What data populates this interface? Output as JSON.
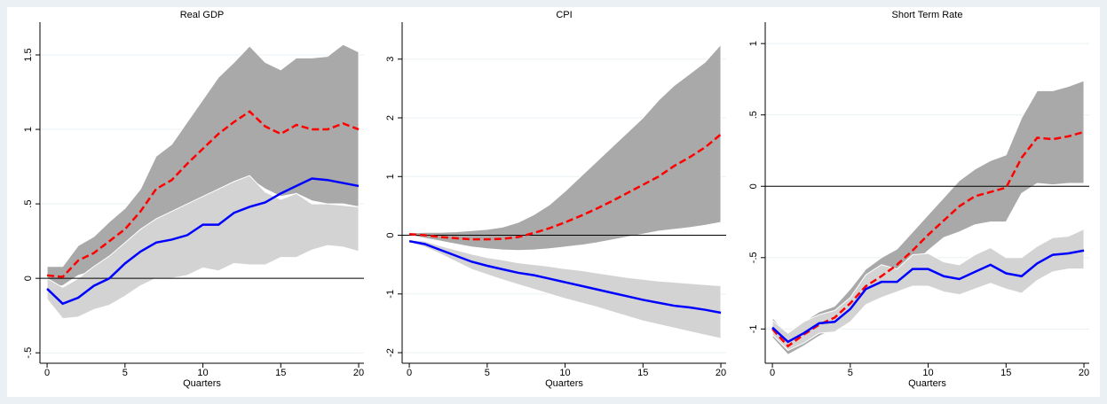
{
  "chart_data": [
    {
      "type": "line",
      "title": "Real GDP",
      "x_label": "Quarters",
      "x": [
        0,
        1,
        2,
        3,
        4,
        5,
        6,
        7,
        8,
        9,
        10,
        11,
        12,
        13,
        14,
        15,
        16,
        17,
        18,
        19,
        20
      ],
      "xlim": [
        -0.46,
        20.34
      ],
      "xticks": [
        0,
        5,
        10,
        15,
        20
      ],
      "ylim": [
        -0.57,
        1.72
      ],
      "yticks": [
        {
          "value": -0.5,
          "label": "-.5"
        },
        0,
        {
          "value": 0.5,
          "label": ".5"
        },
        1,
        1.5
      ],
      "grid": true,
      "reference_line": 0,
      "series": [
        {
          "color": "#ff0000",
          "style": "dashed",
          "values": [
            0.02,
            0.01,
            0.12,
            0.17,
            0.25,
            0.33,
            0.45,
            0.6,
            0.66,
            0.77,
            0.87,
            0.97,
            1.05,
            1.12,
            1.02,
            0.97,
            1.03,
            1.0,
            1.0,
            1.04,
            1.0
          ],
          "band": {
            "color": "#a9a9a9",
            "lower": [
              -0.05,
              -0.05,
              0.02,
              0.05,
              0.1,
              0.15,
              0.22,
              0.32,
              0.38,
              0.46,
              0.52,
              0.58,
              0.63,
              0.67,
              0.6,
              0.55,
              0.57,
              0.52,
              0.5,
              0.5,
              0.48
            ],
            "upper": [
              0.08,
              0.08,
              0.22,
              0.28,
              0.38,
              0.47,
              0.6,
              0.82,
              0.9,
              1.05,
              1.2,
              1.35,
              1.45,
              1.56,
              1.45,
              1.4,
              1.48,
              1.48,
              1.49,
              1.57,
              1.52
            ]
          }
        },
        {
          "color": "#0000ff",
          "style": "solid",
          "values": [
            -0.07,
            -0.17,
            -0.13,
            -0.05,
            0.0,
            0.1,
            0.18,
            0.24,
            0.26,
            0.29,
            0.36,
            0.36,
            0.44,
            0.48,
            0.51,
            0.57,
            0.62,
            0.67,
            0.66,
            0.64,
            0.62
          ],
          "band": {
            "color": "#d3d3d3",
            "lower": [
              -0.14,
              -0.27,
              -0.26,
              -0.21,
              -0.18,
              -0.12,
              -0.05,
              0.0,
              0.0,
              0.02,
              0.07,
              0.05,
              0.1,
              0.09,
              0.09,
              0.14,
              0.14,
              0.19,
              0.22,
              0.21,
              0.18
            ],
            "upper": [
              0.0,
              -0.06,
              0.0,
              0.08,
              0.15,
              0.24,
              0.33,
              0.4,
              0.45,
              0.5,
              0.55,
              0.6,
              0.65,
              0.69,
              0.58,
              0.53,
              0.57,
              0.5,
              0.5,
              0.49,
              0.48
            ]
          }
        }
      ]
    },
    {
      "type": "line",
      "title": "CPI",
      "x_label": "Quarters",
      "x": [
        0,
        1,
        2,
        3,
        4,
        5,
        6,
        7,
        8,
        9,
        10,
        11,
        12,
        13,
        14,
        15,
        16,
        17,
        18,
        19,
        20
      ],
      "xlim": [
        -0.46,
        20.34
      ],
      "xticks": [
        0,
        5,
        10,
        15,
        20
      ],
      "ylim": [
        -2.18,
        3.63
      ],
      "yticks": [
        -2,
        -1,
        0,
        1,
        2,
        3
      ],
      "grid": true,
      "reference_line": 0,
      "series": [
        {
          "color": "#ff0000",
          "style": "dashed",
          "values": [
            0.02,
            0.0,
            -0.03,
            -0.05,
            -0.07,
            -0.07,
            -0.06,
            -0.03,
            0.04,
            0.12,
            0.22,
            0.33,
            0.45,
            0.58,
            0.72,
            0.86,
            1.0,
            1.18,
            1.33,
            1.5,
            1.72
          ],
          "band": {
            "color": "#a9a9a9",
            "lower": [
              0.0,
              -0.05,
              -0.1,
              -0.15,
              -0.2,
              -0.23,
              -0.25,
              -0.26,
              -0.25,
              -0.23,
              -0.2,
              -0.17,
              -0.13,
              -0.08,
              -0.03,
              0.02,
              0.07,
              0.1,
              0.13,
              0.17,
              0.22
            ],
            "upper": [
              0.04,
              0.05,
              0.05,
              0.06,
              0.08,
              0.1,
              0.14,
              0.22,
              0.35,
              0.52,
              0.75,
              1.0,
              1.25,
              1.5,
              1.75,
              2.0,
              2.3,
              2.55,
              2.75,
              2.95,
              3.25
            ]
          }
        },
        {
          "color": "#0000ff",
          "style": "solid",
          "values": [
            -0.1,
            -0.15,
            -0.25,
            -0.35,
            -0.45,
            -0.52,
            -0.58,
            -0.64,
            -0.68,
            -0.74,
            -0.8,
            -0.86,
            -0.92,
            -0.98,
            -1.04,
            -1.1,
            -1.15,
            -1.2,
            -1.23,
            -1.27,
            -1.32
          ],
          "band": {
            "color": "#d3d3d3",
            "lower": [
              -0.12,
              -0.2,
              -0.32,
              -0.45,
              -0.58,
              -0.67,
              -0.76,
              -0.84,
              -0.92,
              -1.0,
              -1.08,
              -1.15,
              -1.22,
              -1.3,
              -1.38,
              -1.46,
              -1.52,
              -1.58,
              -1.64,
              -1.7,
              -1.76
            ],
            "upper": [
              -0.08,
              -0.1,
              -0.18,
              -0.25,
              -0.32,
              -0.38,
              -0.42,
              -0.47,
              -0.5,
              -0.53,
              -0.57,
              -0.6,
              -0.64,
              -0.68,
              -0.72,
              -0.75,
              -0.78,
              -0.8,
              -0.82,
              -0.84,
              -0.86
            ]
          }
        }
      ]
    },
    {
      "type": "line",
      "title": "Short Term Rate",
      "x_label": "Quarters",
      "x": [
        0,
        1,
        2,
        3,
        4,
        5,
        6,
        7,
        8,
        9,
        10,
        11,
        12,
        13,
        14,
        15,
        16,
        17,
        18,
        19,
        20
      ],
      "xlim": [
        -0.46,
        20.34
      ],
      "xticks": [
        0,
        5,
        10,
        15,
        20
      ],
      "ylim": [
        -1.24,
        1.15
      ],
      "yticks": [
        -1,
        {
          "value": -0.5,
          "label": "-.5"
        },
        0,
        {
          "value": 0.5,
          "label": ".5"
        },
        1
      ],
      "grid": true,
      "reference_line": 0,
      "series": [
        {
          "color": "#ff0000",
          "style": "dashed",
          "values": [
            -1.0,
            -1.12,
            -1.04,
            -0.97,
            -0.92,
            -0.82,
            -0.7,
            -0.63,
            -0.55,
            -0.45,
            -0.34,
            -0.24,
            -0.14,
            -0.07,
            -0.04,
            -0.01,
            0.2,
            0.34,
            0.33,
            0.35,
            0.38
          ],
          "band": {
            "color": "#a9a9a9",
            "lower": [
              -1.06,
              -1.18,
              -1.12,
              -1.05,
              -1.0,
              -0.92,
              -0.8,
              -0.72,
              -0.65,
              -0.55,
              -0.45,
              -0.36,
              -0.32,
              -0.27,
              -0.25,
              -0.25,
              -0.05,
              0.02,
              0.01,
              0.02,
              0.02
            ],
            "upper": [
              -0.92,
              -1.04,
              -0.95,
              -0.88,
              -0.84,
              -0.72,
              -0.58,
              -0.5,
              -0.44,
              -0.32,
              -0.2,
              -0.08,
              0.04,
              0.12,
              0.18,
              0.22,
              0.48,
              0.67,
              0.67,
              0.7,
              0.74
            ]
          }
        },
        {
          "color": "#0000ff",
          "style": "solid",
          "values": [
            -0.99,
            -1.09,
            -1.03,
            -0.96,
            -0.95,
            -0.86,
            -0.72,
            -0.67,
            -0.67,
            -0.58,
            -0.58,
            -0.63,
            -0.65,
            -0.6,
            -0.55,
            -0.61,
            -0.63,
            -0.54,
            -0.48,
            -0.47,
            -0.45
          ],
          "band": {
            "color": "#d3d3d3",
            "lower": [
              -1.04,
              -1.15,
              -1.1,
              -1.03,
              -1.02,
              -0.95,
              -0.83,
              -0.78,
              -0.74,
              -0.7,
              -0.7,
              -0.74,
              -0.76,
              -0.72,
              -0.68,
              -0.72,
              -0.75,
              -0.66,
              -0.6,
              -0.58,
              -0.58
            ],
            "upper": [
              -0.94,
              -1.03,
              -0.95,
              -0.9,
              -0.87,
              -0.78,
              -0.62,
              -0.55,
              -0.58,
              -0.48,
              -0.47,
              -0.53,
              -0.55,
              -0.48,
              -0.43,
              -0.5,
              -0.5,
              -0.42,
              -0.36,
              -0.35,
              -0.3
            ]
          }
        }
      ]
    }
  ]
}
